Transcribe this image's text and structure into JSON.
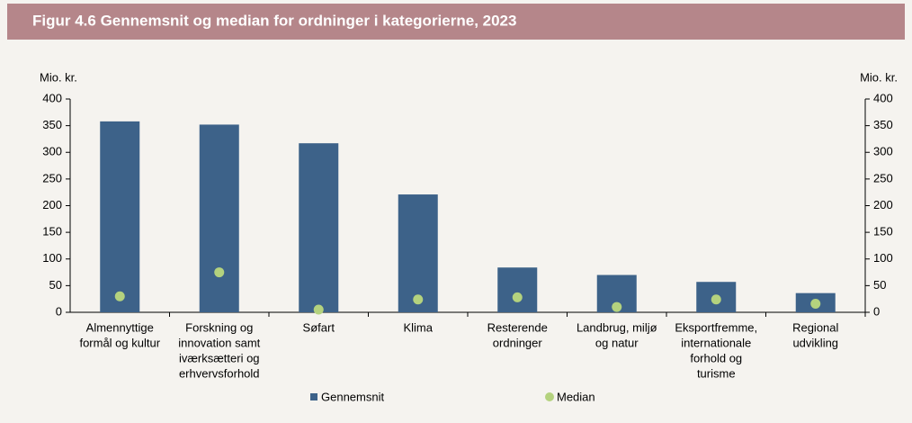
{
  "chart_data": {
    "type": "bar",
    "title": "Figur 4.6  Gennemsnit og median for ordninger i kategorierne, 2023",
    "y_label": "Mio. kr.",
    "y2_label": "Mio. kr.",
    "categories": [
      [
        "Almennyttige",
        "formål og kultur"
      ],
      [
        "Forskning og",
        "innovation samt",
        "iværksætteri og",
        "erhvervsforhold"
      ],
      [
        "Søfart"
      ],
      [
        "Klima"
      ],
      [
        "Resterende",
        "ordninger"
      ],
      [
        "Landbrug, miljø",
        "og natur"
      ],
      [
        "Eksportfremme,",
        "internationale",
        "forhold og",
        "turisme"
      ],
      [
        "Regional",
        "udvikling"
      ]
    ],
    "series": [
      {
        "name": "Gennemsnit",
        "color": "#3d6289",
        "values": [
          358,
          352,
          317,
          221,
          84,
          70,
          57,
          36
        ]
      },
      {
        "name": "Median",
        "color": "#b4d27e",
        "values": [
          30,
          75,
          5,
          24,
          28,
          10,
          24,
          16
        ]
      }
    ],
    "ylim": [
      0,
      400
    ],
    "yticks": [
      0,
      50,
      100,
      150,
      200,
      250,
      300,
      350,
      400
    ],
    "y2lim": [
      0,
      400
    ],
    "y2ticks": [
      0,
      50,
      100,
      150,
      200,
      250,
      300,
      350,
      400
    ]
  }
}
